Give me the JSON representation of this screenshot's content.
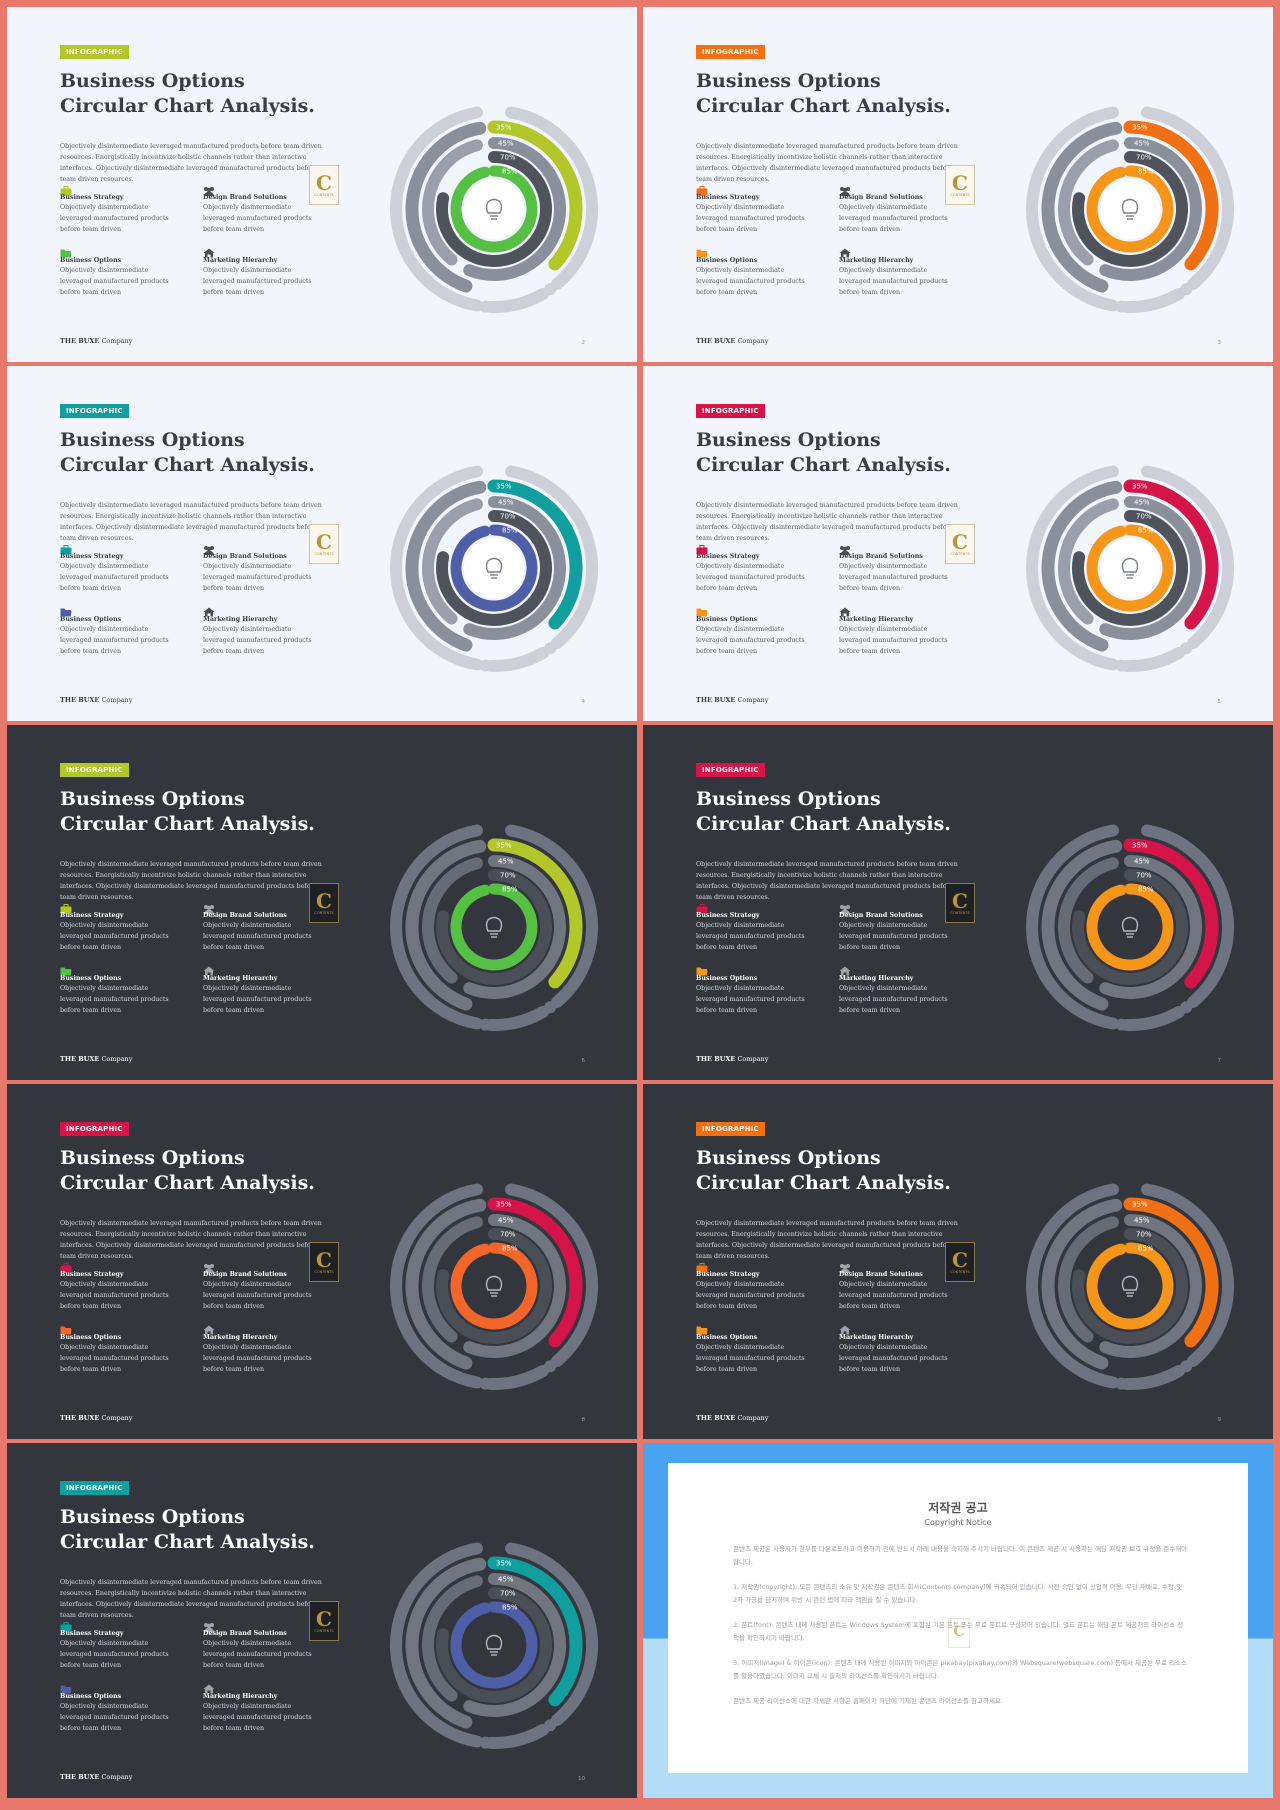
{
  "colors": {
    "background": "#e8776c",
    "light_bg": "#f3f5fc",
    "dark_bg": "#33363c",
    "lime": "#b2c72a",
    "orange": "#f27014",
    "amber": "#f5961a",
    "teal": "#119e9e",
    "crimson": "#d5154a",
    "green": "#55c043",
    "indigo": "#4e5fa8",
    "orange_red": "#f2662a"
  },
  "common": {
    "badge": "INFOGRAPHIC",
    "title_line1": "Business Options",
    "title_line2": "Circular Chart Analysis.",
    "description": "Objectively disintermediate leveraged manufactured products before team driven resources. Energistically incentivize holistic channels rather than interactive interfaces. Objectively disintermediate leveraged manufactured products before team driven resources.",
    "item_text": "Objectively disintermediate leveraged manufactured products before team driven",
    "items": [
      {
        "title": "Business Strategy",
        "icon": "briefcase-icon"
      },
      {
        "title": "Design Brand Solutions",
        "icon": "users-icon"
      },
      {
        "title": "Business Options",
        "icon": "folder-icon"
      },
      {
        "title": "Marketing Hierarchy",
        "icon": "home-icon"
      }
    ],
    "footer_brand": "THE BUXE",
    "footer_company": "Company",
    "logo_letter": "C",
    "logo_text": "CONTENTS",
    "ring_percents": [
      "35%",
      "45%",
      "70%",
      "85%"
    ]
  },
  "slides": [
    {
      "page": "2",
      "theme": "light",
      "accent": "#b2c72a",
      "inner": "#55c043"
    },
    {
      "page": "3",
      "theme": "light",
      "accent": "#f27014",
      "inner": "#f5961a"
    },
    {
      "page": "4",
      "theme": "light",
      "accent": "#119e9e",
      "inner": "#4e5fa8"
    },
    {
      "page": "5",
      "theme": "light",
      "accent": "#d5154a",
      "inner": "#f5961a"
    },
    {
      "page": "6",
      "theme": "dark",
      "accent": "#b2c72a",
      "inner": "#55c043"
    },
    {
      "page": "7",
      "theme": "dark",
      "accent": "#d5154a",
      "inner": "#f5961a"
    },
    {
      "page": "8",
      "theme": "dark",
      "accent": "#d5154a",
      "inner": "#f2662a"
    },
    {
      "page": "9",
      "theme": "dark",
      "accent": "#f27014",
      "inner": "#f5961a"
    },
    {
      "page": "10",
      "theme": "dark",
      "accent": "#119e9e",
      "inner": "#4e5fa8"
    }
  ],
  "notice": {
    "title": "저작권 공고",
    "subtitle": "Copyright Notice",
    "paragraphs": [
      "콘텐츠 제공은 사용자가 첨부를 다운로드하고 이용하기 전에 반드시 아래 내용을 숙지해 주시기 바랍니다. 이 콘텐츠 제공 시 사용자는 해당 저작권 보호 규정을 준수해야 합니다.",
      "1. 저작권(copyright): 모든 콘텐츠의 소유 및 저작권은 콘텐츠 회사(Contents company)에 귀속되어 있습니다. 사전 승인 없이 상업적 이용, 무단 재배포, 수정 및 2차 가공을 금지하며 위반 시 관련 법에 따라 책임을 질 수 있습니다.",
      "2. 폰트(font): 콘텐츠 내에 사용된 폰트는 Windows System에 포함된 기본 폰트 또는 무료 폰트로 구성되어 있습니다. 별도 폰트는 해당 폰트 제공처의 라이선스 정책을 확인하시기 바랍니다.",
      "3. 이미지(image) & 아이콘(icon): 콘텐츠 내에 사용된 이미지와 아이콘은 pixabay(pixabay.com)와 Websquare(websquare.com) 등에서 제공된 무료 리소스를 활용하였습니다. 이미지 교체 시 출처의 라이선스를 확인하시기 바랍니다.",
      "콘텐츠 제공 라이선스에 대한 자세한 사항은 홈페이지 하단에 기재된 콘텐츠 라이선스를 참고하세요."
    ]
  }
}
